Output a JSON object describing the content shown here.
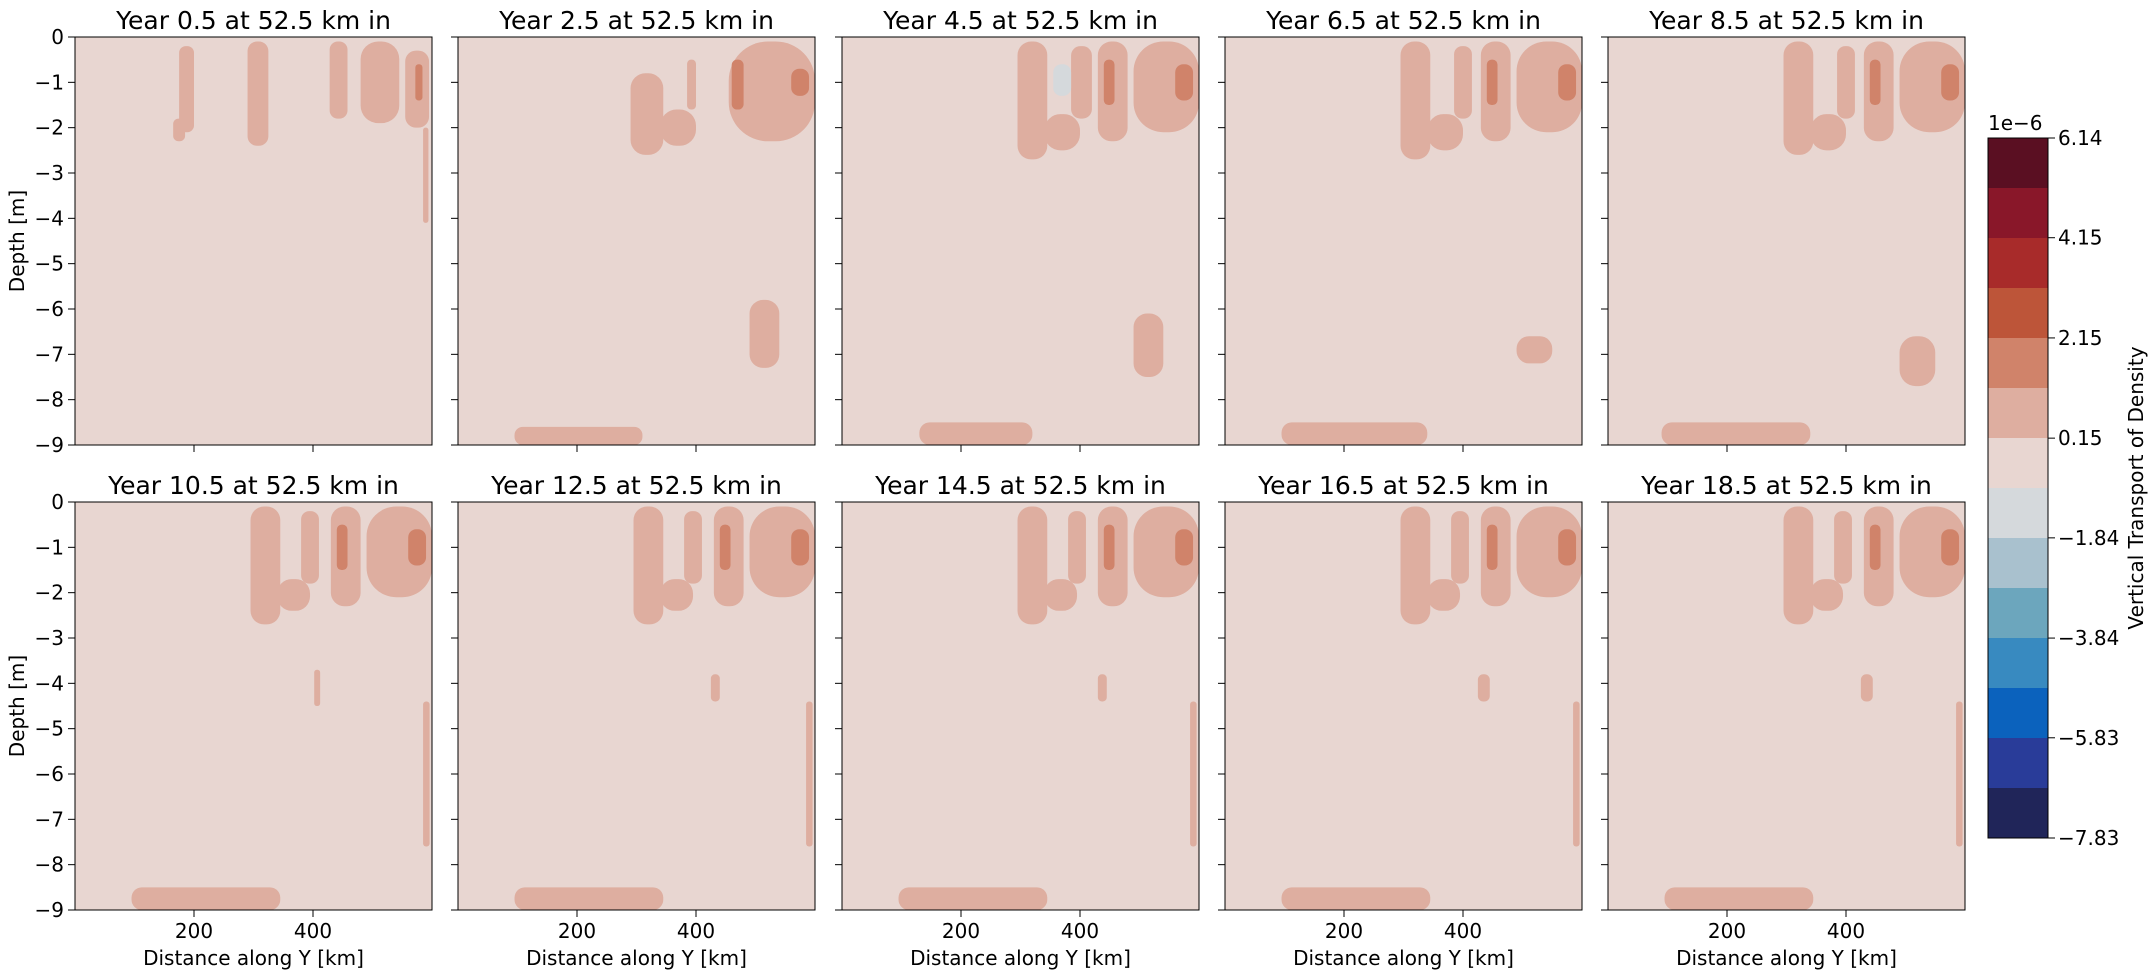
{
  "chart_data": {
    "type": "heatmap",
    "layout": {
      "rows": 2,
      "cols": 5
    },
    "panels": [
      {
        "title": "Year 0.5 at 52.5 km in",
        "features": [
          {
            "kind": "pos",
            "level": 1,
            "y0": 175,
            "y1": 200,
            "z0": -2.1,
            "z1": -0.2
          },
          {
            "kind": "pos",
            "level": 1,
            "y0": 165,
            "y1": 185,
            "z0": -2.3,
            "z1": -1.8
          },
          {
            "kind": "pos",
            "level": 1,
            "y0": 290,
            "y1": 325,
            "z0": -2.4,
            "z1": -0.1
          },
          {
            "kind": "pos",
            "level": 1,
            "y0": 428,
            "y1": 458,
            "z0": -1.8,
            "z1": -0.1
          },
          {
            "kind": "pos",
            "level": 1,
            "y0": 480,
            "y1": 545,
            "z0": -1.9,
            "z1": -0.1
          },
          {
            "kind": "pos",
            "level": 1,
            "y0": 555,
            "y1": 595,
            "z0": -2.0,
            "z1": -0.3
          },
          {
            "kind": "pos",
            "level": 2,
            "y0": 572,
            "y1": 584,
            "z0": -1.4,
            "z1": -0.6
          },
          {
            "kind": "pos",
            "level": 1,
            "y0": 585,
            "y1": 594,
            "z0": -4.1,
            "z1": -2.0
          }
        ]
      },
      {
        "title": "Year 2.5 at 52.5 km in",
        "features": [
          {
            "kind": "pos",
            "level": 1,
            "y0": 290,
            "y1": 345,
            "z0": -2.6,
            "z1": -0.8
          },
          {
            "kind": "pos",
            "level": 1,
            "y0": 340,
            "y1": 400,
            "z0": -2.4,
            "z1": -1.6
          },
          {
            "kind": "pos",
            "level": 1,
            "y0": 385,
            "y1": 400,
            "z0": -1.6,
            "z1": -0.5
          },
          {
            "kind": "pos",
            "level": 1,
            "y0": 455,
            "y1": 600,
            "z0": -2.3,
            "z1": -0.1
          },
          {
            "kind": "pos",
            "level": 2,
            "y0": 460,
            "y1": 480,
            "z0": -1.6,
            "z1": -0.5
          },
          {
            "kind": "pos",
            "level": 2,
            "y0": 560,
            "y1": 590,
            "z0": -1.3,
            "z1": -0.7
          },
          {
            "kind": "pos",
            "level": 1,
            "y0": 490,
            "y1": 540,
            "z0": -7.3,
            "z1": -5.8
          },
          {
            "kind": "pos",
            "level": 1,
            "y0": 95,
            "y1": 310,
            "z0": -9.0,
            "z1": -8.6
          }
        ]
      },
      {
        "title": "Year 4.5 at 52.5 km in",
        "features": [
          {
            "kind": "pos",
            "level": 1,
            "y0": 295,
            "y1": 345,
            "z0": -2.7,
            "z1": -0.1
          },
          {
            "kind": "pos",
            "level": 1,
            "y0": 340,
            "y1": 400,
            "z0": -2.5,
            "z1": -1.7
          },
          {
            "kind": "pos",
            "level": 1,
            "y0": 385,
            "y1": 420,
            "z0": -1.8,
            "z1": -0.2
          },
          {
            "kind": "neg",
            "level": 1,
            "y0": 355,
            "y1": 385,
            "z0": -1.3,
            "z1": -0.6
          },
          {
            "kind": "pos",
            "level": 1,
            "y0": 430,
            "y1": 480,
            "z0": -2.3,
            "z1": -0.1
          },
          {
            "kind": "pos",
            "level": 2,
            "y0": 440,
            "y1": 458,
            "z0": -1.5,
            "z1": -0.5
          },
          {
            "kind": "pos",
            "level": 1,
            "y0": 490,
            "y1": 600,
            "z0": -2.1,
            "z1": -0.1
          },
          {
            "kind": "pos",
            "level": 2,
            "y0": 560,
            "y1": 590,
            "z0": -1.4,
            "z1": -0.6
          },
          {
            "kind": "pos",
            "level": 1,
            "y0": 490,
            "y1": 540,
            "z0": -7.5,
            "z1": -6.1
          },
          {
            "kind": "pos",
            "level": 1,
            "y0": 130,
            "y1": 320,
            "z0": -9.0,
            "z1": -8.5
          }
        ]
      },
      {
        "title": "Year 6.5 at 52.5 km in",
        "features": [
          {
            "kind": "pos",
            "level": 1,
            "y0": 295,
            "y1": 345,
            "z0": -2.7,
            "z1": -0.1
          },
          {
            "kind": "pos",
            "level": 1,
            "y0": 340,
            "y1": 400,
            "z0": -2.5,
            "z1": -1.7
          },
          {
            "kind": "pos",
            "level": 1,
            "y0": 385,
            "y1": 415,
            "z0": -1.8,
            "z1": -0.2
          },
          {
            "kind": "pos",
            "level": 1,
            "y0": 430,
            "y1": 480,
            "z0": -2.3,
            "z1": -0.1
          },
          {
            "kind": "pos",
            "level": 2,
            "y0": 440,
            "y1": 458,
            "z0": -1.5,
            "z1": -0.5
          },
          {
            "kind": "pos",
            "level": 1,
            "y0": 490,
            "y1": 600,
            "z0": -2.1,
            "z1": -0.1
          },
          {
            "kind": "pos",
            "level": 2,
            "y0": 560,
            "y1": 590,
            "z0": -1.4,
            "z1": -0.6
          },
          {
            "kind": "pos",
            "level": 1,
            "y0": 490,
            "y1": 550,
            "z0": -7.2,
            "z1": -6.6
          },
          {
            "kind": "pos",
            "level": 1,
            "y0": 95,
            "y1": 340,
            "z0": -9.0,
            "z1": -8.5
          }
        ]
      },
      {
        "title": "Year 8.5 at 52.5 km in",
        "features": [
          {
            "kind": "pos",
            "level": 1,
            "y0": 295,
            "y1": 345,
            "z0": -2.6,
            "z1": -0.1
          },
          {
            "kind": "pos",
            "level": 1,
            "y0": 340,
            "y1": 400,
            "z0": -2.5,
            "z1": -1.7
          },
          {
            "kind": "pos",
            "level": 1,
            "y0": 385,
            "y1": 415,
            "z0": -1.8,
            "z1": -0.2
          },
          {
            "kind": "pos",
            "level": 1,
            "y0": 430,
            "y1": 480,
            "z0": -2.3,
            "z1": -0.1
          },
          {
            "kind": "pos",
            "level": 2,
            "y0": 440,
            "y1": 458,
            "z0": -1.5,
            "z1": -0.5
          },
          {
            "kind": "pos",
            "level": 1,
            "y0": 490,
            "y1": 600,
            "z0": -2.1,
            "z1": -0.1
          },
          {
            "kind": "pos",
            "level": 2,
            "y0": 560,
            "y1": 590,
            "z0": -1.4,
            "z1": -0.6
          },
          {
            "kind": "pos",
            "level": 1,
            "y0": 490,
            "y1": 550,
            "z0": -7.7,
            "z1": -6.6
          },
          {
            "kind": "pos",
            "level": 1,
            "y0": 90,
            "y1": 340,
            "z0": -9.0,
            "z1": -8.5
          }
        ]
      },
      {
        "title": "Year 10.5 at 52.5 km in",
        "features": [
          {
            "kind": "pos",
            "level": 1,
            "y0": 295,
            "y1": 345,
            "z0": -2.7,
            "z1": -0.1
          },
          {
            "kind": "pos",
            "level": 1,
            "y0": 340,
            "y1": 395,
            "z0": -2.4,
            "z1": -1.7
          },
          {
            "kind": "pos",
            "level": 1,
            "y0": 380,
            "y1": 410,
            "z0": -1.8,
            "z1": -0.2
          },
          {
            "kind": "pos",
            "level": 1,
            "y0": 430,
            "y1": 480,
            "z0": -2.3,
            "z1": -0.1
          },
          {
            "kind": "pos",
            "level": 2,
            "y0": 440,
            "y1": 458,
            "z0": -1.5,
            "z1": -0.5
          },
          {
            "kind": "pos",
            "level": 1,
            "y0": 490,
            "y1": 600,
            "z0": -2.1,
            "z1": -0.1
          },
          {
            "kind": "pos",
            "level": 2,
            "y0": 560,
            "y1": 590,
            "z0": -1.4,
            "z1": -0.6
          },
          {
            "kind": "pos",
            "level": 1,
            "y0": 402,
            "y1": 412,
            "z0": -4.5,
            "z1": -3.7
          },
          {
            "kind": "pos",
            "level": 1,
            "y0": 585,
            "y1": 596,
            "z0": -7.6,
            "z1": -4.4
          },
          {
            "kind": "pos",
            "level": 1,
            "y0": 95,
            "y1": 345,
            "z0": -9.0,
            "z1": -8.5
          }
        ]
      },
      {
        "title": "Year 12.5 at 52.5 km in",
        "features": [
          {
            "kind": "pos",
            "level": 1,
            "y0": 295,
            "y1": 345,
            "z0": -2.7,
            "z1": -0.1
          },
          {
            "kind": "pos",
            "level": 1,
            "y0": 340,
            "y1": 395,
            "z0": -2.4,
            "z1": -1.7
          },
          {
            "kind": "pos",
            "level": 1,
            "y0": 380,
            "y1": 410,
            "z0": -1.8,
            "z1": -0.2
          },
          {
            "kind": "pos",
            "level": 1,
            "y0": 430,
            "y1": 480,
            "z0": -2.3,
            "z1": -0.1
          },
          {
            "kind": "pos",
            "level": 2,
            "y0": 440,
            "y1": 458,
            "z0": -1.5,
            "z1": -0.5
          },
          {
            "kind": "pos",
            "level": 1,
            "y0": 490,
            "y1": 600,
            "z0": -2.1,
            "z1": -0.1
          },
          {
            "kind": "pos",
            "level": 2,
            "y0": 560,
            "y1": 590,
            "z0": -1.4,
            "z1": -0.6
          },
          {
            "kind": "pos",
            "level": 1,
            "y0": 425,
            "y1": 440,
            "z0": -4.4,
            "z1": -3.8
          },
          {
            "kind": "pos",
            "level": 1,
            "y0": 585,
            "y1": 596,
            "z0": -7.6,
            "z1": -4.4
          },
          {
            "kind": "pos",
            "level": 1,
            "y0": 95,
            "y1": 345,
            "z0": -9.0,
            "z1": -8.5
          }
        ]
      },
      {
        "title": "Year 14.5 at 52.5 km in",
        "features": [
          {
            "kind": "pos",
            "level": 1,
            "y0": 295,
            "y1": 345,
            "z0": -2.7,
            "z1": -0.1
          },
          {
            "kind": "pos",
            "level": 1,
            "y0": 340,
            "y1": 395,
            "z0": -2.4,
            "z1": -1.7
          },
          {
            "kind": "pos",
            "level": 1,
            "y0": 380,
            "y1": 410,
            "z0": -1.8,
            "z1": -0.2
          },
          {
            "kind": "pos",
            "level": 1,
            "y0": 430,
            "y1": 480,
            "z0": -2.3,
            "z1": -0.1
          },
          {
            "kind": "pos",
            "level": 2,
            "y0": 440,
            "y1": 458,
            "z0": -1.5,
            "z1": -0.5
          },
          {
            "kind": "pos",
            "level": 1,
            "y0": 490,
            "y1": 600,
            "z0": -2.1,
            "z1": -0.1
          },
          {
            "kind": "pos",
            "level": 2,
            "y0": 560,
            "y1": 590,
            "z0": -1.4,
            "z1": -0.6
          },
          {
            "kind": "pos",
            "level": 1,
            "y0": 430,
            "y1": 445,
            "z0": -4.4,
            "z1": -3.8
          },
          {
            "kind": "pos",
            "level": 1,
            "y0": 585,
            "y1": 596,
            "z0": -7.6,
            "z1": -4.4
          },
          {
            "kind": "pos",
            "level": 1,
            "y0": 95,
            "y1": 345,
            "z0": -9.0,
            "z1": -8.5
          }
        ]
      },
      {
        "title": "Year 16.5 at 52.5 km in",
        "features": [
          {
            "kind": "pos",
            "level": 1,
            "y0": 295,
            "y1": 345,
            "z0": -2.7,
            "z1": -0.1
          },
          {
            "kind": "pos",
            "level": 1,
            "y0": 340,
            "y1": 395,
            "z0": -2.4,
            "z1": -1.7
          },
          {
            "kind": "pos",
            "level": 1,
            "y0": 380,
            "y1": 410,
            "z0": -1.8,
            "z1": -0.2
          },
          {
            "kind": "pos",
            "level": 1,
            "y0": 430,
            "y1": 480,
            "z0": -2.3,
            "z1": -0.1
          },
          {
            "kind": "pos",
            "level": 2,
            "y0": 440,
            "y1": 458,
            "z0": -1.5,
            "z1": -0.5
          },
          {
            "kind": "pos",
            "level": 1,
            "y0": 490,
            "y1": 600,
            "z0": -2.1,
            "z1": -0.1
          },
          {
            "kind": "pos",
            "level": 2,
            "y0": 560,
            "y1": 590,
            "z0": -1.4,
            "z1": -0.6
          },
          {
            "kind": "pos",
            "level": 1,
            "y0": 425,
            "y1": 445,
            "z0": -4.4,
            "z1": -3.8
          },
          {
            "kind": "pos",
            "level": 1,
            "y0": 585,
            "y1": 596,
            "z0": -7.6,
            "z1": -4.4
          },
          {
            "kind": "pos",
            "level": 1,
            "y0": 95,
            "y1": 345,
            "z0": -9.0,
            "z1": -8.5
          }
        ]
      },
      {
        "title": "Year 18.5 at 52.5 km in",
        "features": [
          {
            "kind": "pos",
            "level": 1,
            "y0": 295,
            "y1": 345,
            "z0": -2.7,
            "z1": -0.1
          },
          {
            "kind": "pos",
            "level": 1,
            "y0": 340,
            "y1": 395,
            "z0": -2.4,
            "z1": -1.7
          },
          {
            "kind": "pos",
            "level": 1,
            "y0": 380,
            "y1": 410,
            "z0": -1.8,
            "z1": -0.2
          },
          {
            "kind": "pos",
            "level": 1,
            "y0": 430,
            "y1": 480,
            "z0": -2.3,
            "z1": -0.1
          },
          {
            "kind": "pos",
            "level": 2,
            "y0": 440,
            "y1": 458,
            "z0": -1.5,
            "z1": -0.5
          },
          {
            "kind": "pos",
            "level": 1,
            "y0": 490,
            "y1": 600,
            "z0": -2.1,
            "z1": -0.1
          },
          {
            "kind": "pos",
            "level": 2,
            "y0": 560,
            "y1": 590,
            "z0": -1.4,
            "z1": -0.6
          },
          {
            "kind": "pos",
            "level": 1,
            "y0": 425,
            "y1": 445,
            "z0": -4.4,
            "z1": -3.8
          },
          {
            "kind": "pos",
            "level": 1,
            "y0": 585,
            "y1": 596,
            "z0": -7.6,
            "z1": -4.4
          },
          {
            "kind": "pos",
            "level": 1,
            "y0": 95,
            "y1": 345,
            "z0": -9.0,
            "z1": -8.5
          }
        ]
      }
    ],
    "xlabel": "Distance along Y [km]",
    "ylabel": "Depth [m]",
    "xlim": [
      0,
      600
    ],
    "ylim": [
      -9,
      0
    ],
    "xticks": [
      200,
      400
    ],
    "yticks": [
      0,
      -1,
      -2,
      -3,
      -4,
      -5,
      -6,
      -7,
      -8,
      -9
    ],
    "background_color": "#e8d6d1",
    "colorbar": {
      "label": "Vertical Transport of Density",
      "exponent_label": "1e−6",
      "min": -7.83,
      "max": 6.14,
      "tick_labels": [
        "6.14",
        "4.15",
        "2.15",
        "0.15",
        "−1.84",
        "−3.84",
        "−5.83",
        "−7.83"
      ],
      "tick_values": [
        6.14,
        4.15,
        2.15,
        0.15,
        -1.84,
        -3.84,
        -5.83,
        -7.83
      ],
      "colors_top_to_bottom": [
        "#5a0f22",
        "#891729",
        "#a82b2a",
        "#bd5539",
        "#d0836a",
        "#deaea0",
        "#e8d6d1",
        "#d5d9dc",
        "#a9c1ce",
        "#6ca6bd",
        "#388ac0",
        "#0b62bd",
        "#293c99",
        "#202559"
      ]
    },
    "level_colors": {
      "pos": [
        "#e8d6d1",
        "#deaea0",
        "#d0836a"
      ],
      "neg": [
        "#e8d6d1",
        "#d5d9dc",
        "#a9c1ce"
      ]
    }
  }
}
